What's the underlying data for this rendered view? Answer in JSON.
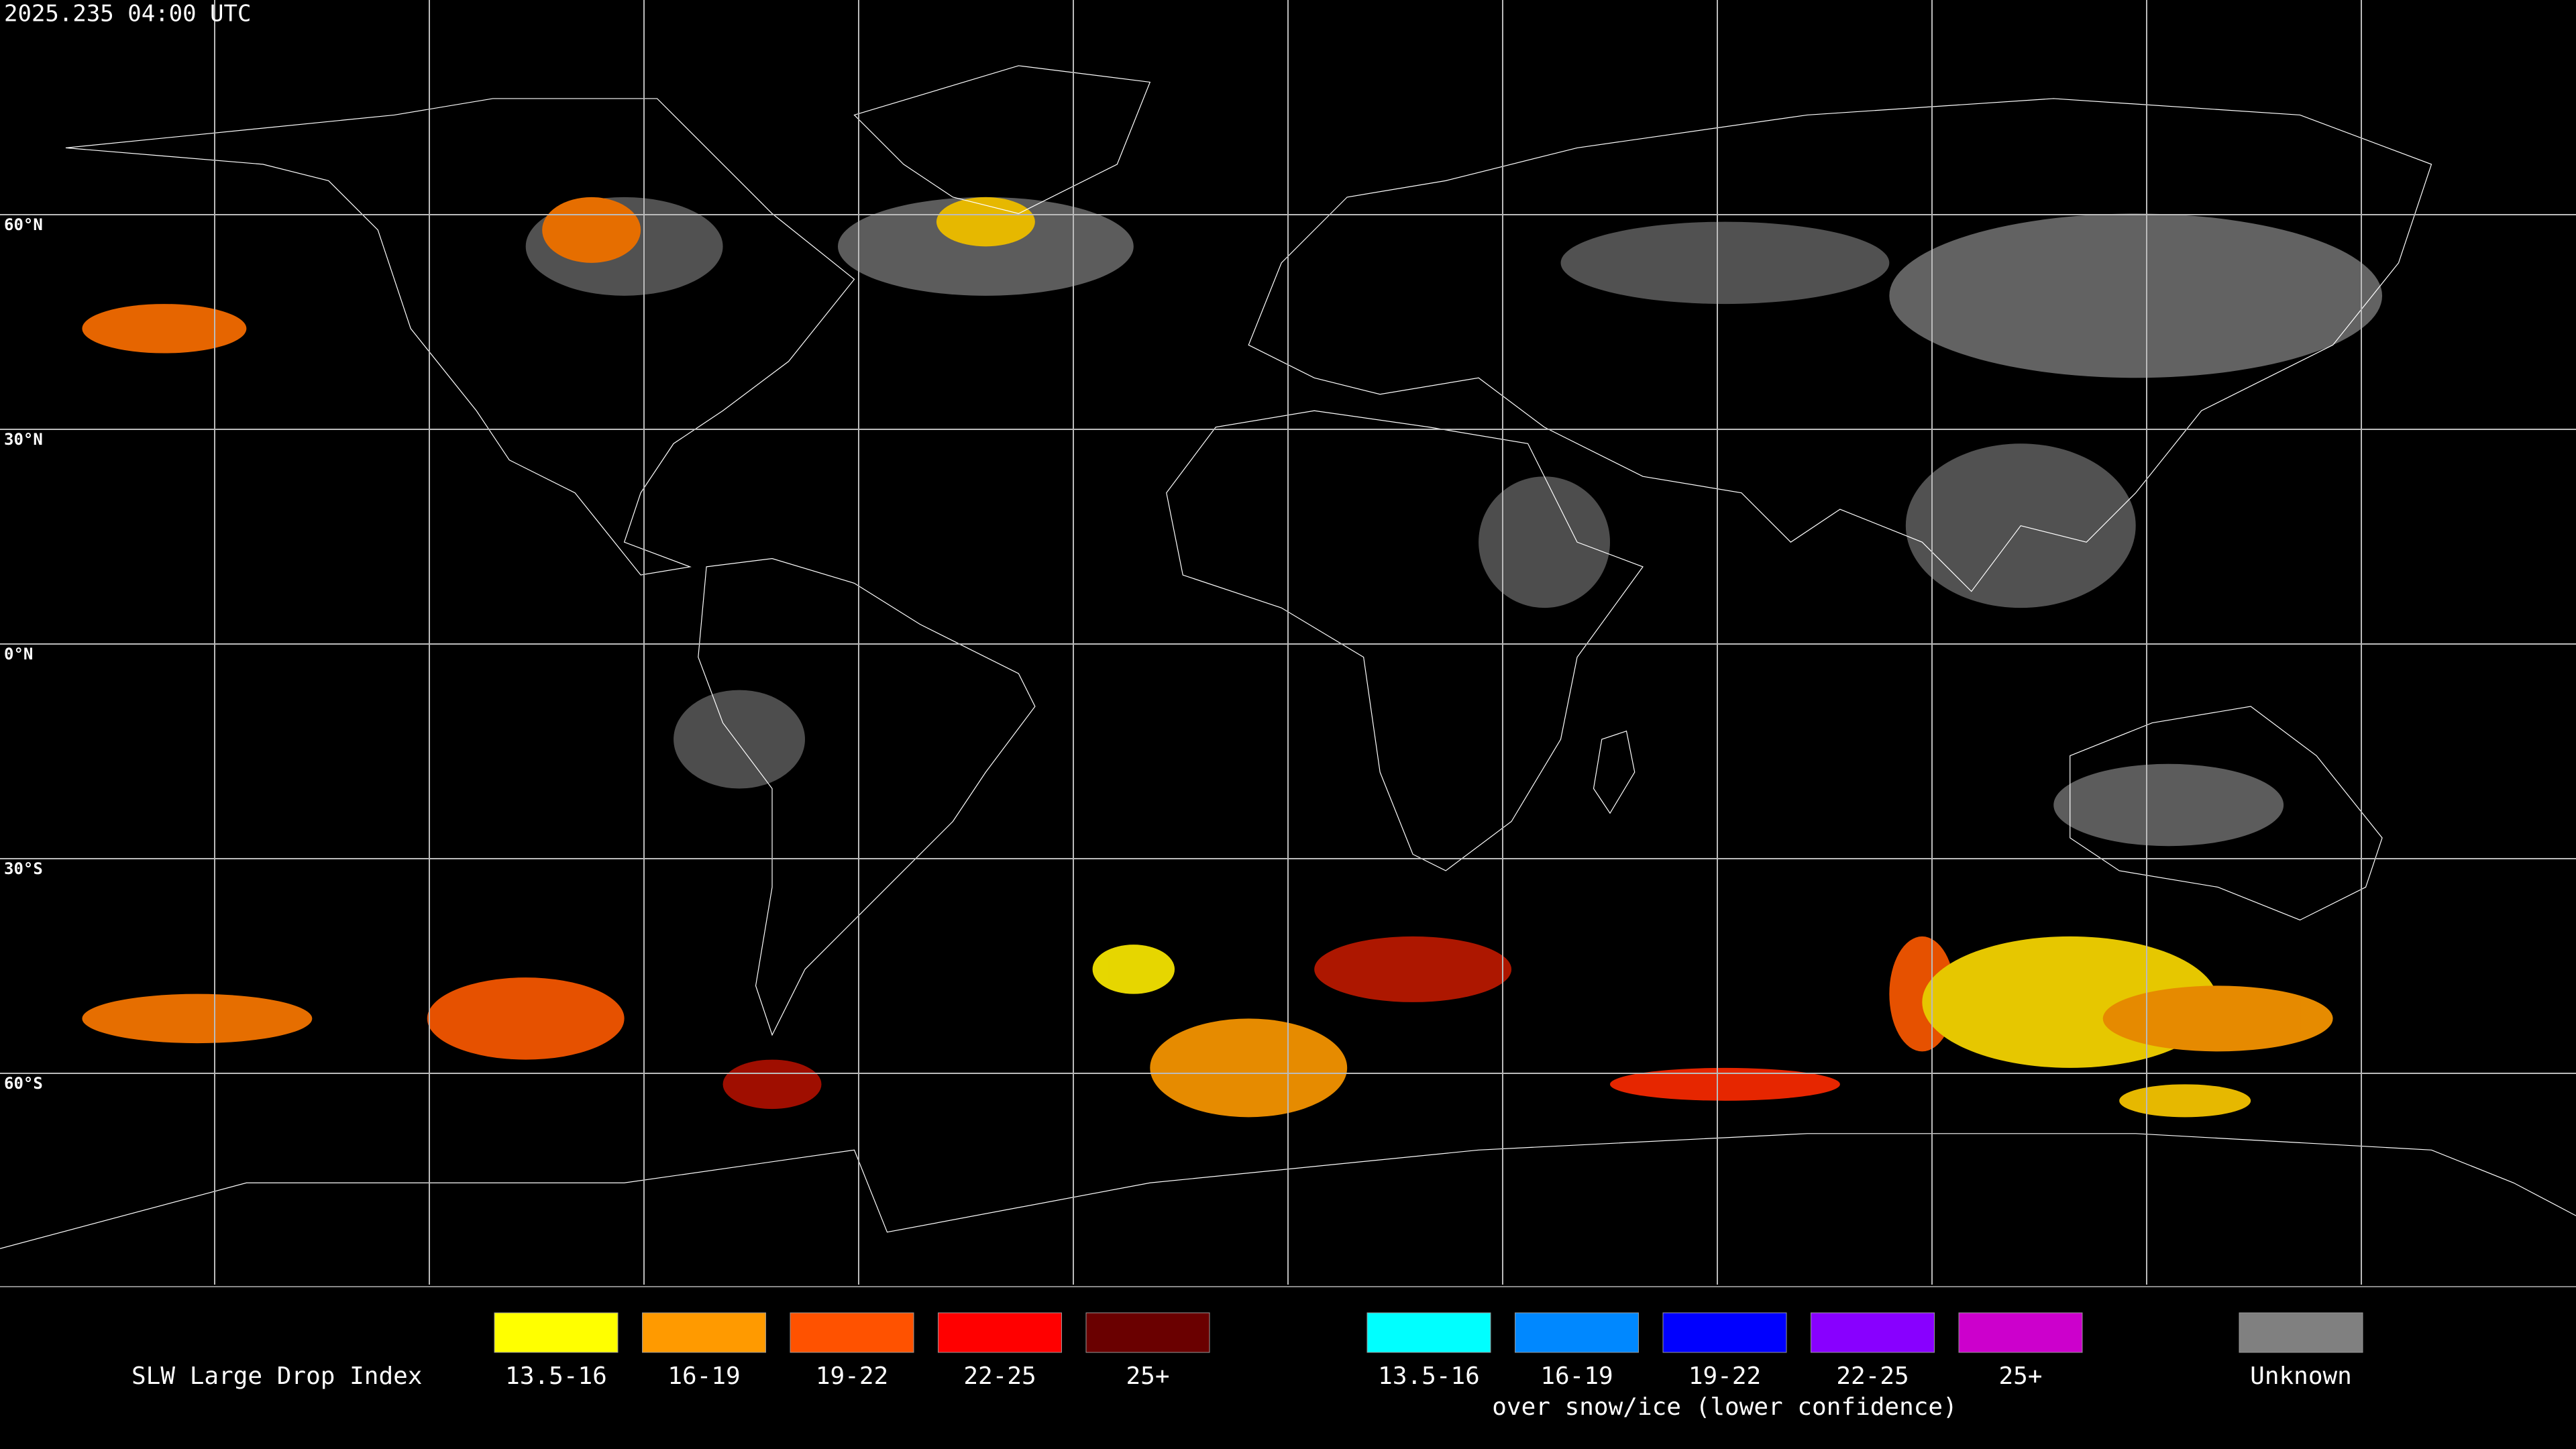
{
  "header": {
    "timestamp": "2025.235 04:00 UTC"
  },
  "map": {
    "latitude_labels": [
      "60°N",
      "30°N",
      "0°N",
      "30°S",
      "60°S"
    ]
  },
  "legend": {
    "title": "SLW Large Drop Index",
    "groups": [
      {
        "items": [
          {
            "label": "13.5-16",
            "color": "#ffff00"
          },
          {
            "label": "16-19",
            "color": "#ff9a00"
          },
          {
            "label": "19-22",
            "color": "#ff5200"
          },
          {
            "label": "22-25",
            "color": "#ff0000"
          },
          {
            "label": "25+",
            "color": "#6a0000"
          }
        ]
      },
      {
        "caption": "over snow/ice (lower confidence)",
        "items": [
          {
            "label": "13.5-16",
            "color": "#00ffff"
          },
          {
            "label": "16-19",
            "color": "#0088ff"
          },
          {
            "label": "19-22",
            "color": "#0000ff"
          },
          {
            "label": "22-25",
            "color": "#8800ff"
          },
          {
            "label": "25+",
            "color": "#cc00cc"
          }
        ]
      }
    ],
    "unknown": {
      "label": "Unknown",
      "color": "#808080"
    }
  }
}
